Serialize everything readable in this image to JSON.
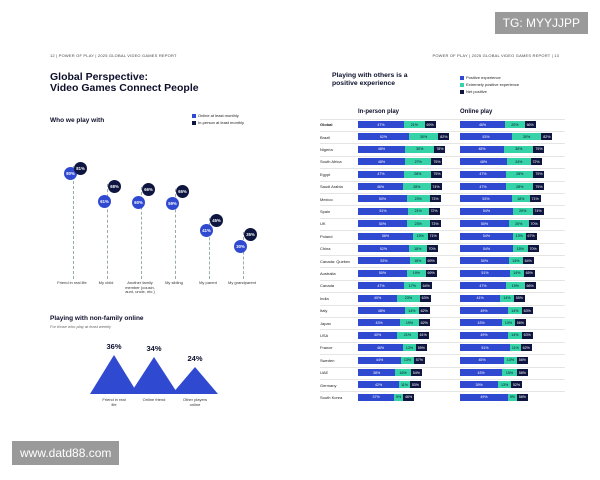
{
  "watermarks": {
    "top": "TG: MYYJJPP",
    "bottom": "www.datd88.com"
  },
  "left_page": {
    "running_head": "12   |   POWER OF PLAY   |   2025 GLOBAL VIDEO GAMES REPORT",
    "title_line1": "Global Perspective:",
    "title_line2": "Video Games Connect People",
    "who_we_play_with": {
      "heading": "Who we play with",
      "legend": [
        "Online at least monthly",
        "In-person at least monthly"
      ],
      "colors": {
        "online": "#2f49d1",
        "in_person": "#0d1540"
      },
      "categories": [
        {
          "label": "Friend in real life",
          "online": 80,
          "in_person": 81
        },
        {
          "label": "My child",
          "online": 61,
          "in_person": 68
        },
        {
          "label": "Another family member (cousin, aunt, uncle, etc.)",
          "online": 60,
          "in_person": 66
        },
        {
          "label": "My sibling",
          "online": 59,
          "in_person": 65
        },
        {
          "label": "My parent",
          "online": 41,
          "in_person": 45
        },
        {
          "label": "My grandparent",
          "online": 30,
          "in_person": 35
        }
      ]
    },
    "non_family": {
      "heading": "Playing with non-family online",
      "note": "For those who play at least weekly",
      "items": [
        {
          "label": "Friend in real life",
          "value": "36%"
        },
        {
          "label": "Online friend",
          "value": "34%"
        },
        {
          "label": "Other players online",
          "value": "24%"
        }
      ]
    }
  },
  "right_page": {
    "running_head": "POWER OF PLAY   |   2025 GLOBAL VIDEO GAMES REPORT   |   13",
    "heading_line1": "Playing with others is a",
    "heading_line2": "positive experience",
    "legend": [
      "Positive experience",
      "Extremely positive experience",
      "Net positive"
    ],
    "colors": {
      "positive": "#2f49d1",
      "extremely": "#36d3a8",
      "net": "#0d1540"
    },
    "in_person_title": "In-person play",
    "online_title": "Online play",
    "countries": [
      {
        "name": "Global",
        "bold": true,
        "ip": [
          47,
          21,
          69
        ],
        "on": [
          46,
          20,
          66
        ]
      },
      {
        "name": "Brazil",
        "ip": [
          52,
          30,
          82
        ],
        "on": [
          53,
          30,
          82
        ]
      },
      {
        "name": "Nigeria",
        "ip": [
          48,
          30,
          78
        ],
        "on": [
          45,
          30,
          75
        ]
      },
      {
        "name": "South Africa",
        "ip": [
          48,
          27,
          75
        ],
        "on": [
          48,
          24,
          72
        ]
      },
      {
        "name": "Egypt",
        "ip": [
          47,
          28,
          75
        ],
        "on": [
          47,
          28,
          75
        ]
      },
      {
        "name": "Saudi Arabia",
        "ip": [
          46,
          28,
          74
        ],
        "on": [
          47,
          28,
          75
        ]
      },
      {
        "name": "Mexico",
        "ip": [
          50,
          23,
          73
        ],
        "on": [
          53,
          18,
          71
        ]
      },
      {
        "name": "Spain",
        "ip": [
          51,
          21,
          72
        ],
        "on": [
          54,
          20,
          74
        ]
      },
      {
        "name": "UK",
        "ip": [
          50,
          23,
          73
        ],
        "on": [
          50,
          20,
          70
        ]
      },
      {
        "name": "Poland",
        "ip": [
          56,
          15,
          71
        ],
        "on": [
          54,
          13,
          67
        ]
      },
      {
        "name": "China",
        "ip": [
          52,
          18,
          70
        ],
        "on": [
          54,
          15,
          70
        ]
      },
      {
        "name": "Canada: Quebec",
        "ip": [
          53,
          16,
          69
        ],
        "on": [
          50,
          14,
          64
        ]
      },
      {
        "name": "Australia",
        "ip": [
          50,
          19,
          69
        ],
        "on": [
          51,
          14,
          65
        ]
      },
      {
        "name": "Canada",
        "ip": [
          47,
          17,
          64
        ],
        "on": [
          47,
          19,
          66
        ]
      },
      {
        "name": "India",
        "ip": [
          40,
          23,
          63
        ],
        "on": [
          41,
          14,
          55
        ]
      },
      {
        "name": "Italy",
        "ip": [
          48,
          14,
          62
        ],
        "on": [
          49,
          14,
          63
        ]
      },
      {
        "name": "Japan",
        "ip": [
          43,
          19,
          62
        ],
        "on": [
          43,
          13,
          56
        ]
      },
      {
        "name": "USA",
        "ip": [
          40,
          21,
          61
        ],
        "on": [
          49,
          14,
          63
        ]
      },
      {
        "name": "France",
        "ip": [
          46,
          13,
          59
        ],
        "on": [
          51,
          11,
          62
        ]
      },
      {
        "name": "Sweden",
        "ip": [
          44,
          13,
          57
        ],
        "on": [
          45,
          13,
          58
        ]
      },
      {
        "name": "UAE",
        "ip": [
          38,
          16,
          54
        ],
        "on": [
          43,
          15,
          58
        ]
      },
      {
        "name": "Germany",
        "ip": [
          42,
          11,
          53
        ],
        "on": [
          39,
          13,
          52
        ]
      },
      {
        "name": "South Korea",
        "ip": [
          37,
          9,
          46
        ],
        "on": [
          49,
          9,
          58
        ]
      }
    ]
  }
}
